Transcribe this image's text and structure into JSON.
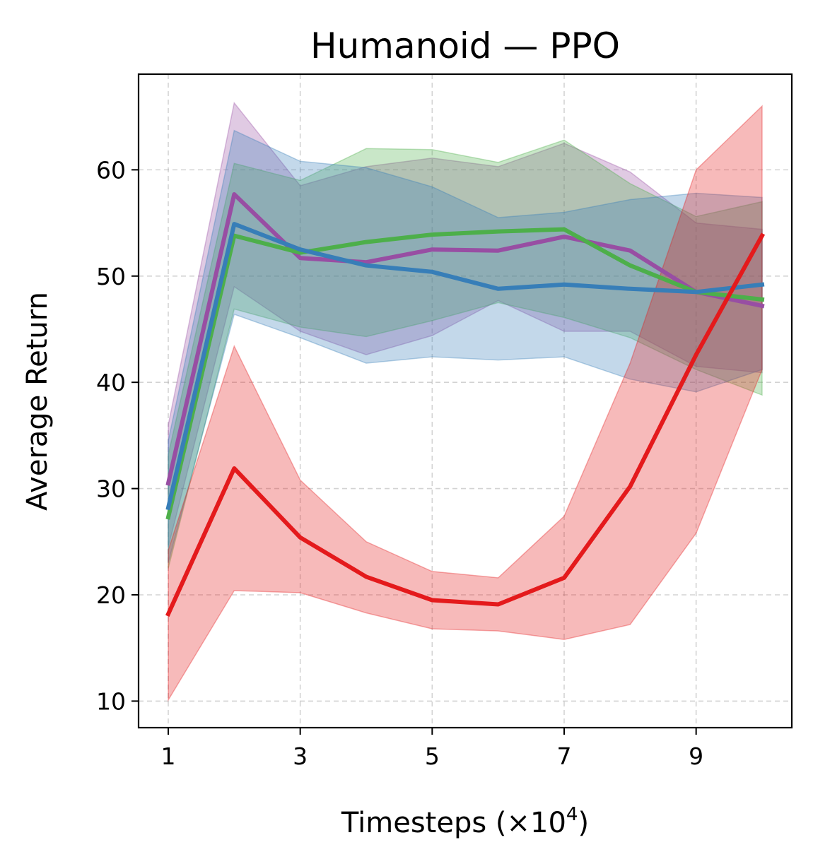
{
  "chart_data": {
    "type": "line",
    "title": "Humanoid — PPO",
    "xlabel": "Timesteps (×10",
    "xlabel_superscript": "4",
    "xlabel_close": ")",
    "ylabel": "Average Return",
    "xlim": [
      0.55,
      10.45
    ],
    "ylim": [
      7.5,
      69
    ],
    "xticks": [
      1,
      3,
      5,
      7,
      9
    ],
    "yticks": [
      10,
      20,
      30,
      40,
      50,
      60
    ],
    "grid": true,
    "x": [
      1,
      2,
      3,
      4,
      5,
      6,
      7,
      8,
      9,
      10
    ],
    "series": [
      {
        "name": "purple",
        "color": "#984ea3",
        "values": [
          30.5,
          57.7,
          51.7,
          51.3,
          52.5,
          52.4,
          53.7,
          52.4,
          48.5,
          47.2
        ],
        "lower": [
          24.5,
          49.0,
          44.8,
          42.6,
          44.4,
          47.7,
          44.8,
          44.8,
          41.5,
          40.9
        ],
        "upper": [
          36.0,
          66.3,
          58.5,
          60.3,
          61.1,
          60.3,
          62.5,
          59.8,
          55.0,
          54.4
        ]
      },
      {
        "name": "green",
        "color": "#4daf4a",
        "values": [
          27.3,
          53.8,
          52.2,
          53.2,
          53.9,
          54.2,
          54.4,
          51.0,
          48.5,
          47.8
        ],
        "lower": [
          22.5,
          46.9,
          45.2,
          44.3,
          45.8,
          47.5,
          46.1,
          44.2,
          41.2,
          38.8
        ],
        "upper": [
          33.2,
          60.6,
          59.0,
          62.0,
          61.9,
          60.7,
          62.8,
          58.7,
          55.6,
          57.0
        ]
      },
      {
        "name": "blue",
        "color": "#377eb8",
        "values": [
          28.2,
          54.9,
          52.5,
          51.0,
          50.4,
          48.8,
          49.2,
          48.8,
          48.5,
          49.2
        ],
        "lower": [
          23.0,
          46.4,
          44.2,
          41.8,
          42.4,
          42.1,
          42.4,
          40.3,
          39.1,
          41.2
        ],
        "upper": [
          34.5,
          63.7,
          60.8,
          60.2,
          58.4,
          55.5,
          56.0,
          57.2,
          57.8,
          57.4
        ]
      },
      {
        "name": "red",
        "color": "#e41a1c",
        "values": [
          18.2,
          31.9,
          25.4,
          21.7,
          19.5,
          19.1,
          21.6,
          30.2,
          42.6,
          53.8
        ],
        "lower": [
          10.1,
          20.4,
          20.2,
          18.3,
          16.8,
          16.6,
          15.8,
          17.2,
          25.8,
          41.2
        ],
        "upper": [
          24.2,
          43.4,
          30.8,
          25.0,
          22.2,
          21.6,
          27.4,
          41.8,
          60.0,
          66.0
        ]
      }
    ]
  }
}
